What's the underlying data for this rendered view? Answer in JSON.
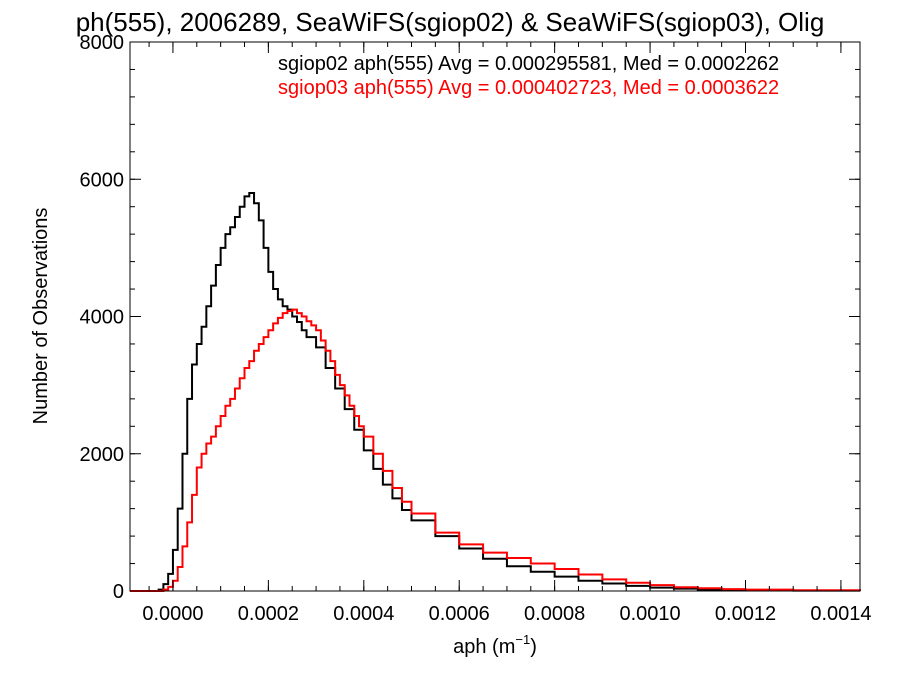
{
  "chart_data": {
    "type": "line",
    "title": "ph(555), 2006289, SeaWiFS(sgiop02) & SeaWiFS(sgiop03), Olig",
    "xlabel": "aph (m",
    "xlabel_sup": "−1",
    "xlabel_close": ")",
    "ylabel": "Number of Observations",
    "xlim": [
      -9e-05,
      0.00144
    ],
    "ylim": [
      0,
      8000
    ],
    "x_ticks": [
      {
        "value": 0.0,
        "label": "0.0000"
      },
      {
        "value": 0.0002,
        "label": "0.0002"
      },
      {
        "value": 0.0004,
        "label": "0.0004"
      },
      {
        "value": 0.0006,
        "label": "0.0006"
      },
      {
        "value": 0.0008,
        "label": "0.0008"
      },
      {
        "value": 0.001,
        "label": "0.0010"
      },
      {
        "value": 0.0012,
        "label": "0.0012"
      },
      {
        "value": 0.0014,
        "label": "0.0014"
      }
    ],
    "y_ticks": [
      {
        "value": 0,
        "label": "0"
      },
      {
        "value": 2000,
        "label": "2000"
      },
      {
        "value": 4000,
        "label": "4000"
      },
      {
        "value": 6000,
        "label": "6000"
      },
      {
        "value": 8000,
        "label": "8000"
      }
    ],
    "legend_position": "top-right",
    "grid": false,
    "annotations": [
      {
        "text": "sgiop02 aph(555) Avg = 0.000295581, Med = 0.0002262",
        "color": "#000000"
      },
      {
        "text": "sgiop03 aph(555) Avg = 0.000402723, Med = 0.0003622",
        "color": "#ff0000"
      }
    ],
    "series": [
      {
        "color": "#000000",
        "points": [
          [
            -9e-05,
            0
          ],
          [
            -4e-05,
            0
          ],
          [
            -3e-05,
            20
          ],
          [
            -2e-05,
            100
          ],
          [
            -1e-05,
            250
          ],
          [
            0.0,
            600
          ],
          [
            1e-05,
            1200
          ],
          [
            2e-05,
            2000
          ],
          [
            3e-05,
            2800
          ],
          [
            4e-05,
            3300
          ],
          [
            5e-05,
            3600
          ],
          [
            6e-05,
            3850
          ],
          [
            7e-05,
            4150
          ],
          [
            8e-05,
            4450
          ],
          [
            9e-05,
            4750
          ],
          [
            0.0001,
            5000
          ],
          [
            0.00011,
            5200
          ],
          [
            0.00012,
            5300
          ],
          [
            0.00013,
            5450
          ],
          [
            0.00014,
            5600
          ],
          [
            0.00015,
            5750
          ],
          [
            0.00016,
            5800
          ],
          [
            0.00017,
            5650
          ],
          [
            0.00018,
            5400
          ],
          [
            0.00019,
            5000
          ],
          [
            0.0002,
            4650
          ],
          [
            0.00021,
            4400
          ],
          [
            0.00022,
            4250
          ],
          [
            0.00023,
            4150
          ],
          [
            0.00024,
            4100
          ],
          [
            0.00025,
            4000
          ],
          [
            0.00026,
            3920
          ],
          [
            0.00027,
            3800
          ],
          [
            0.00028,
            3700
          ],
          [
            0.0003,
            3550
          ],
          [
            0.00032,
            3250
          ],
          [
            0.00034,
            2950
          ],
          [
            0.00036,
            2650
          ],
          [
            0.00038,
            2350
          ],
          [
            0.0004,
            2050
          ],
          [
            0.00042,
            1780
          ],
          [
            0.00044,
            1550
          ],
          [
            0.00046,
            1350
          ],
          [
            0.00048,
            1180
          ],
          [
            0.0005,
            1030
          ],
          [
            0.00055,
            800
          ],
          [
            0.0006,
            620
          ],
          [
            0.00065,
            470
          ],
          [
            0.0007,
            360
          ],
          [
            0.00075,
            280
          ],
          [
            0.0008,
            210
          ],
          [
            0.00085,
            150
          ],
          [
            0.0009,
            110
          ],
          [
            0.00095,
            75
          ],
          [
            0.001,
            50
          ],
          [
            0.00105,
            35
          ],
          [
            0.0011,
            22
          ],
          [
            0.00115,
            15
          ],
          [
            0.0012,
            10
          ],
          [
            0.0013,
            5
          ],
          [
            0.00144,
            2
          ]
        ]
      },
      {
        "color": "#ff0000",
        "points": [
          [
            -9e-05,
            0
          ],
          [
            -3e-05,
            0
          ],
          [
            -2e-05,
            20
          ],
          [
            -1e-05,
            60
          ],
          [
            0.0,
            150
          ],
          [
            1e-05,
            350
          ],
          [
            2e-05,
            650
          ],
          [
            3e-05,
            1000
          ],
          [
            4e-05,
            1400
          ],
          [
            5e-05,
            1800
          ],
          [
            6e-05,
            2000
          ],
          [
            7e-05,
            2150
          ],
          [
            8e-05,
            2250
          ],
          [
            9e-05,
            2400
          ],
          [
            0.0001,
            2550
          ],
          [
            0.00011,
            2700
          ],
          [
            0.00012,
            2800
          ],
          [
            0.00013,
            2950
          ],
          [
            0.00014,
            3100
          ],
          [
            0.00015,
            3250
          ],
          [
            0.00016,
            3350
          ],
          [
            0.00017,
            3500
          ],
          [
            0.00018,
            3600
          ],
          [
            0.00019,
            3700
          ],
          [
            0.0002,
            3800
          ],
          [
            0.00021,
            3900
          ],
          [
            0.00022,
            3980
          ],
          [
            0.00023,
            4050
          ],
          [
            0.00024,
            4080
          ],
          [
            0.00025,
            4100
          ],
          [
            0.00026,
            4050
          ],
          [
            0.00027,
            4000
          ],
          [
            0.00028,
            3930
          ],
          [
            0.00029,
            3870
          ],
          [
            0.0003,
            3800
          ],
          [
            0.00031,
            3650
          ],
          [
            0.00032,
            3500
          ],
          [
            0.00033,
            3350
          ],
          [
            0.00034,
            3150
          ],
          [
            0.00035,
            3000
          ],
          [
            0.00036,
            2850
          ],
          [
            0.00037,
            2700
          ],
          [
            0.00038,
            2550
          ],
          [
            0.00039,
            2400
          ],
          [
            0.0004,
            2250
          ],
          [
            0.00042,
            2000
          ],
          [
            0.00044,
            1750
          ],
          [
            0.00046,
            1500
          ],
          [
            0.00048,
            1300
          ],
          [
            0.0005,
            1130
          ],
          [
            0.00055,
            850
          ],
          [
            0.0006,
            680
          ],
          [
            0.00065,
            560
          ],
          [
            0.0007,
            480
          ],
          [
            0.00075,
            400
          ],
          [
            0.0008,
            320
          ],
          [
            0.00085,
            240
          ],
          [
            0.0009,
            170
          ],
          [
            0.00095,
            120
          ],
          [
            0.001,
            85
          ],
          [
            0.00105,
            55
          ],
          [
            0.0011,
            40
          ],
          [
            0.00115,
            28
          ],
          [
            0.0012,
            20
          ],
          [
            0.0013,
            10
          ],
          [
            0.00144,
            5
          ]
        ]
      }
    ]
  }
}
